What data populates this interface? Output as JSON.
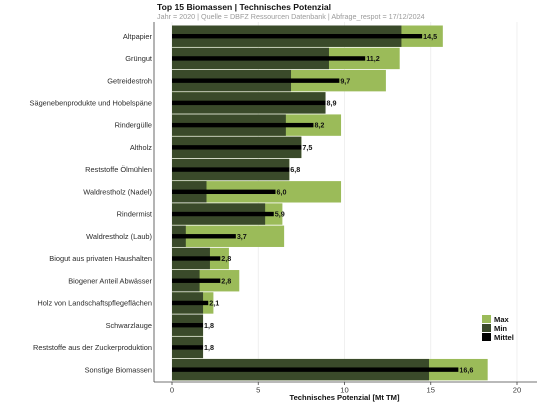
{
  "title": "Top 15 Biomassen | Technisches Potenzial",
  "subtitle": "Jahr = 2020 | Quelle = DBFZ Ressourcen Datenbank  | Abfrage_respot = 17/12/2024",
  "colors": {
    "max": "#9bbb59",
    "min": "#3a4a2a",
    "mittel": "#000000"
  },
  "chart_data": {
    "type": "bar",
    "orientation": "horizontal",
    "xlabel": "Technisches Potenzial [Mt TM]",
    "xlim": [
      0,
      20
    ],
    "xticks": [
      "0",
      "5",
      "10",
      "15",
      "20"
    ],
    "legend_placement": "right",
    "legend": [
      "Max",
      "Min",
      "Mittel"
    ],
    "categories": [
      "Altpapier",
      "Grüngut",
      "Getreidestroh",
      "Sägenebenprodukte und Hobelspäne",
      "Rindergülle",
      "Altholz",
      "Reststoffe Ölmühlen",
      "Waldrestholz (Nadel)",
      "Rindermist",
      "Waldrestholz (Laub)",
      "Biogut aus privaten Haushalten",
      "Biogener Anteil Abwässer",
      "Holz von Landschaftspflegeflächen",
      "Schwarzlauge",
      "Reststoffe aus der Zuckerproduktion",
      "Sonstige Biomassen"
    ],
    "series": [
      {
        "name": "Max",
        "values": [
          15.7,
          13.2,
          12.4,
          8.9,
          9.8,
          7.5,
          6.8,
          9.8,
          6.4,
          6.5,
          3.3,
          3.9,
          2.4,
          1.8,
          1.8,
          18.3
        ]
      },
      {
        "name": "Min",
        "values": [
          13.3,
          9.1,
          6.9,
          8.9,
          6.6,
          7.5,
          6.8,
          2.0,
          5.4,
          0.8,
          2.2,
          1.6,
          1.8,
          1.8,
          1.8,
          14.9
        ]
      },
      {
        "name": "Mittel",
        "values": [
          14.5,
          11.2,
          9.7,
          8.9,
          8.2,
          7.5,
          6.8,
          6.0,
          5.9,
          3.7,
          2.8,
          2.8,
          2.1,
          1.8,
          1.8,
          16.6
        ]
      }
    ],
    "data_labels": [
      "14,5",
      "11,2",
      "9,7",
      "8,9",
      "8,2",
      "7,5",
      "6,8",
      "6,0",
      "5,9",
      "3,7",
      "2,8",
      "2,8",
      "2,1",
      "1,8",
      "1,8",
      "16,6"
    ]
  }
}
